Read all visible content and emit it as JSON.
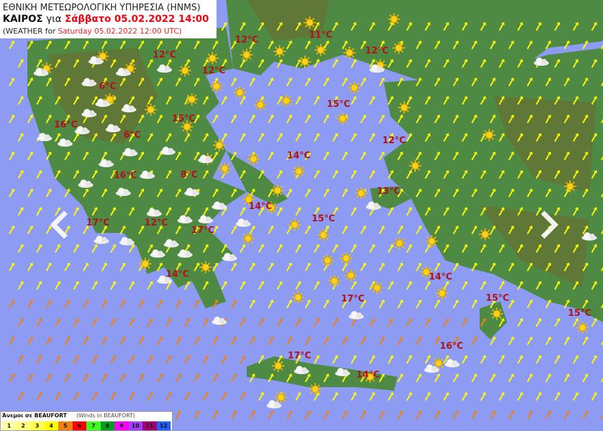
{
  "header": {
    "agency": "ΕΘΝΙΚΗ ΜΕΤΕΩΡΟΛΟΓΙΚΗ ΥΠΗΡΕΣΙΑ (HNMS)",
    "weather_label": "ΚΑΙΡΟΣ",
    "for_label": "για",
    "datetime_greek": "Σάββατο 05.02.2022 14:00",
    "english_prefix": "(WEATHER for",
    "datetime_english": "Saturday 05.02.2022 12:00 UTC)"
  },
  "colors": {
    "sea": "#8d9cf2",
    "land": "#4f8a45",
    "mountain": "#6b6a2e",
    "temp_text": "#b0121a",
    "accent_red": "#f00010"
  },
  "temperatures": [
    "12°C",
    "11°C",
    "12°C",
    "12°C",
    "12°C",
    "6°C",
    "15°C",
    "16°C",
    "15°C",
    "6°C",
    "12°C",
    "14°C",
    "16°C",
    "8°C",
    "13°C",
    "14°C",
    "15°C",
    "17°C",
    "12°C",
    "17°C",
    "14°C",
    "14°C",
    "17°C",
    "15°C",
    "15°C",
    "16°C",
    "17°C",
    "14°C"
  ],
  "icons": {
    "sun": "sun-icon",
    "cloud": "cloud-icon",
    "wind": "wind-arrow-icon"
  },
  "navigation": {
    "prev": "chevron-left-icon",
    "next": "chevron-right-icon"
  },
  "legend": {
    "title": "Άνεμοι σε BEAUFORT",
    "subtitle": "(Winds in BEAUFORT)",
    "scale": [
      {
        "label": "1",
        "color": "#ffffa0"
      },
      {
        "label": "2",
        "color": "#ffff80"
      },
      {
        "label": "3",
        "color": "#ffff50"
      },
      {
        "label": "4",
        "color": "#ffff00"
      },
      {
        "label": "5",
        "color": "#f08010"
      },
      {
        "label": "6",
        "color": "#ff0000"
      },
      {
        "label": "7",
        "color": "#40ff20"
      },
      {
        "label": "8",
        "color": "#00a020"
      },
      {
        "label": "9",
        "color": "#ff00ff"
      },
      {
        "label": "10",
        "color": "#a040ff"
      },
      {
        "label": "11",
        "color": "#a00070"
      },
      {
        "label": "12",
        "color": "#2060ff"
      }
    ]
  }
}
